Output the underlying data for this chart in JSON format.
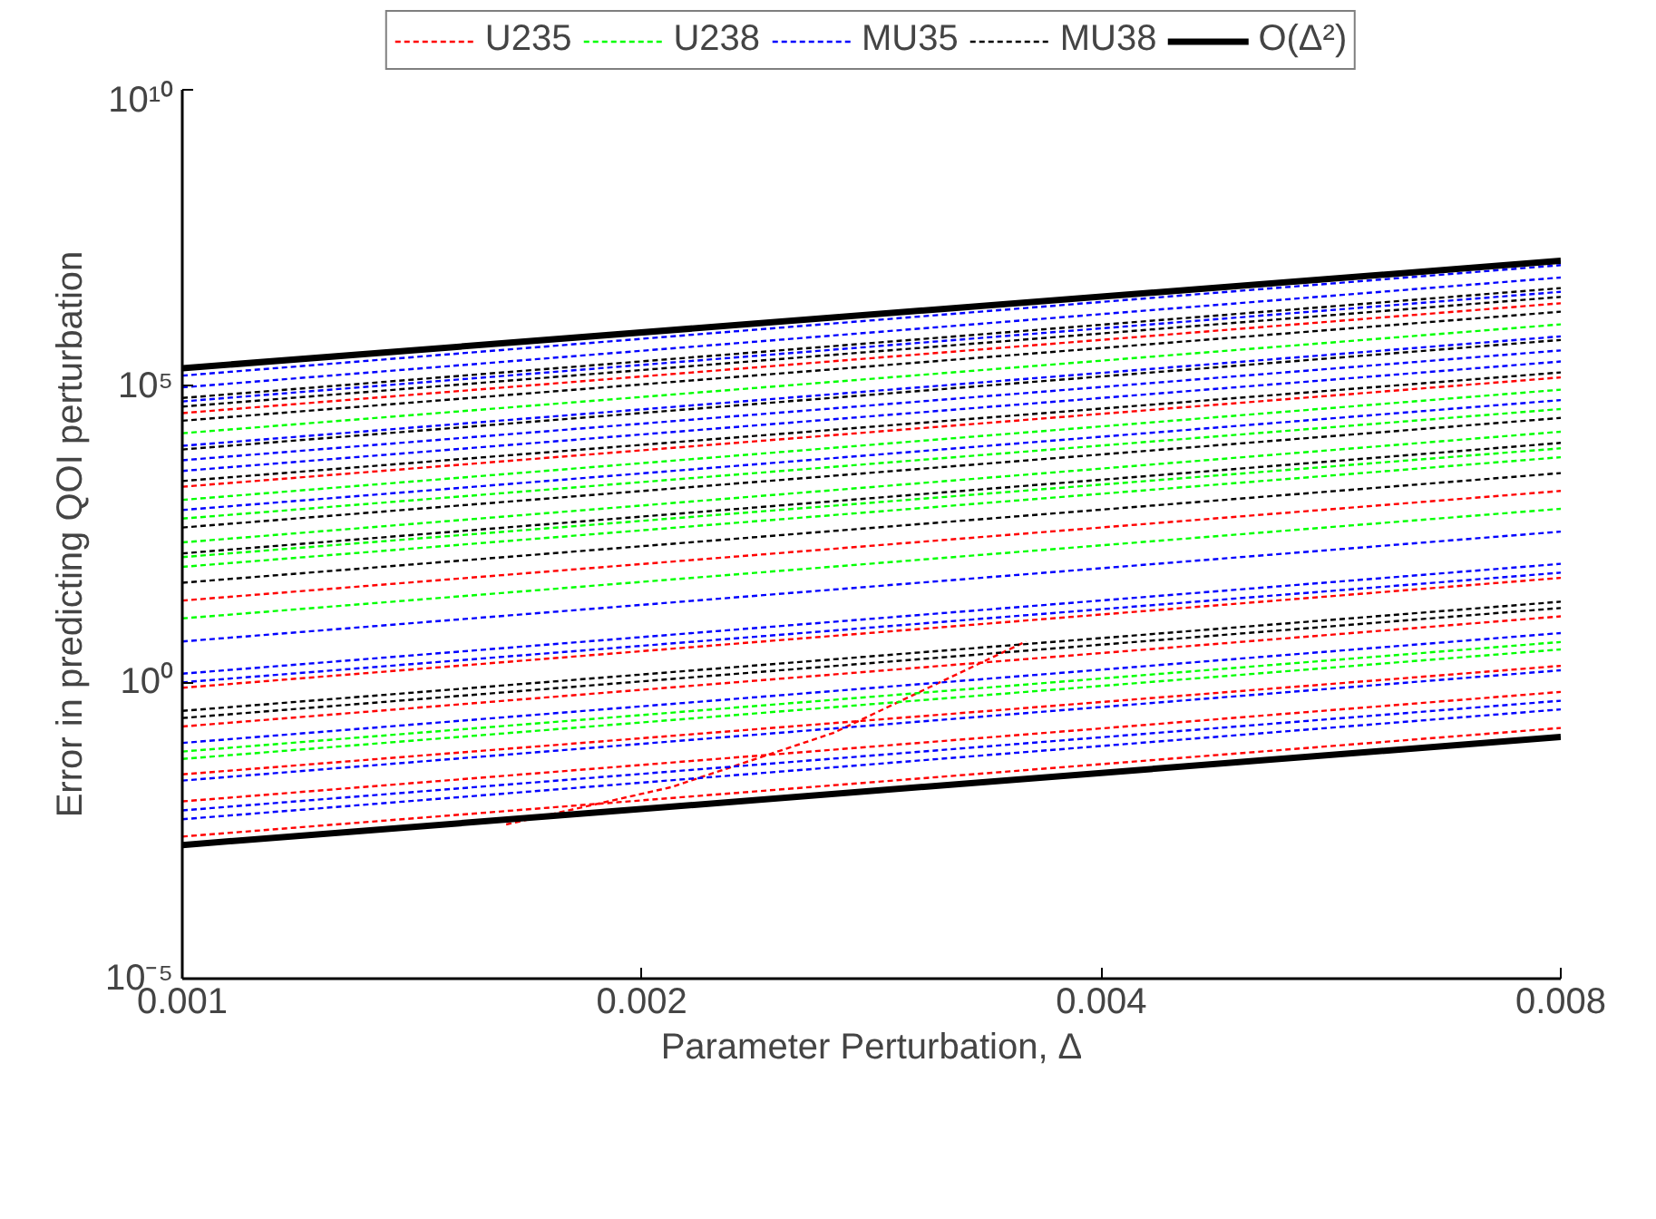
{
  "chart_data": {
    "type": "line",
    "xlabel": "Parameter Perturbation, Δ",
    "ylabel": "Error in predicting QOI perturbation",
    "log": "xy",
    "grid": false,
    "legend": "top",
    "xlim": [
      0.001,
      0.008
    ],
    "ylim": [
      1e-05,
      10000000000.0
    ],
    "xticks": [
      0.001,
      0.002,
      0.004,
      0.008
    ],
    "yticks": [
      {
        "value": 1e-05,
        "label": "10⁻⁵"
      },
      {
        "value": 1,
        "label": "10⁰"
      },
      {
        "value": 100000.0,
        "label": "10⁵"
      },
      {
        "value": 10000000000.0,
        "label": "10¹⁰"
      }
    ],
    "x": [
      0.001,
      0.008
    ],
    "series": [
      {
        "name": "U235",
        "color": "#ff0000",
        "line_style": "dashed",
        "values": [
          35000.0,
          2500000.0
        ]
      },
      {
        "color": "#ff0000",
        "line_style": "dashed",
        "values": [
          2000.0,
          140000.0
        ]
      },
      {
        "color": "#ff0000",
        "line_style": "dashed",
        "values": [
          24,
          1700.0
        ]
      },
      {
        "color": "#ff0000",
        "line_style": "dashed",
        "values": [
          0.81,
          58
        ]
      },
      {
        "color": "#ff0000",
        "line_style": "dashed",
        "values": [
          0.18,
          13
        ]
      },
      {
        "color": "#ff0000",
        "line_style": "dashed",
        "values": [
          0.028,
          1.9
        ]
      },
      {
        "color": "#ff0000",
        "line_style": "dashed",
        "values": [
          0.0098,
          0.69
        ]
      },
      {
        "color": "#ff0000",
        "line_style": "dashed",
        "values": [
          0.0025,
          0.17
        ]
      },
      {
        "color": "#ff0000",
        "line_style": "dashed",
        "x": [
          0.00163,
          0.00209,
          0.00267,
          0.00357
        ],
        "values": [
          0.004,
          0.017,
          0.14,
          4.9
        ]
      },
      {
        "name": "U238",
        "color": "#00ff00",
        "line_style": "dashed",
        "values": [
          16000.0,
          1100000.0
        ]
      },
      {
        "color": "#00ff00",
        "line_style": "dashed",
        "values": [
          1200.0,
          87000.0
        ]
      },
      {
        "color": "#00ff00",
        "line_style": "dashed",
        "values": [
          580,
          41000.0
        ]
      },
      {
        "color": "#00ff00",
        "line_style": "dashed",
        "values": [
          230,
          17000.0
        ]
      },
      {
        "color": "#00ff00",
        "line_style": "dashed",
        "values": [
          130,
          8900.0
        ]
      },
      {
        "color": "#00ff00",
        "line_style": "dashed",
        "values": [
          89,
          6300.0
        ]
      },
      {
        "color": "#00ff00",
        "line_style": "dashed",
        "values": [
          12,
          850
        ]
      },
      {
        "color": "#00ff00",
        "line_style": "dashed",
        "values": [
          0.068,
          4.8
        ]
      },
      {
        "color": "#00ff00",
        "line_style": "dashed",
        "values": [
          0.051,
          3.6
        ]
      },
      {
        "name": "MU35",
        "color": "#0000ff",
        "line_style": "dashed",
        "values": [
          150000.0,
          11000000.0
        ]
      },
      {
        "color": "#0000ff",
        "line_style": "dashed",
        "values": [
          95000.0,
          6800000.0
        ]
      },
      {
        "color": "#0000ff",
        "line_style": "dashed",
        "values": [
          55000.0,
          3900000.0
        ]
      },
      {
        "color": "#0000ff",
        "line_style": "dashed",
        "values": [
          9800.0,
          690000.0
        ]
      },
      {
        "color": "#0000ff",
        "line_style": "dashed",
        "values": [
          5600.0,
          400000.0
        ]
      },
      {
        "color": "#0000ff",
        "line_style": "dashed",
        "values": [
          3700.0,
          260000.0
        ]
      },
      {
        "color": "#0000ff",
        "line_style": "dashed",
        "values": [
          810,
          58000.0
        ]
      },
      {
        "color": "#0000ff",
        "line_style": "dashed",
        "values": [
          4.9,
          350
        ]
      },
      {
        "color": "#0000ff",
        "line_style": "dashed",
        "values": [
          1.4,
          100
        ]
      },
      {
        "color": "#0000ff",
        "line_style": "dashed",
        "values": [
          1.0,
          71
        ]
      },
      {
        "color": "#0000ff",
        "line_style": "dashed",
        "values": [
          0.095,
          6.8
        ]
      },
      {
        "color": "#0000ff",
        "line_style": "dashed",
        "values": [
          0.022,
          1.6
        ]
      },
      {
        "color": "#0000ff",
        "line_style": "dashed",
        "values": [
          0.0069,
          0.49
        ]
      },
      {
        "color": "#0000ff",
        "line_style": "dashed",
        "values": [
          0.0049,
          0.35
        ]
      },
      {
        "name": "MU38",
        "color": "#000000",
        "line_style": "dashed",
        "values": [
          63000.0,
          4500000.0
        ]
      },
      {
        "color": "#000000",
        "line_style": "dashed",
        "values": [
          45000.0,
          3200000.0
        ]
      },
      {
        "color": "#000000",
        "line_style": "dashed",
        "values": [
          26000.0,
          1800000.0
        ]
      },
      {
        "color": "#000000",
        "line_style": "dashed",
        "values": [
          8500.0,
          600000.0
        ]
      },
      {
        "color": "#000000",
        "line_style": "dashed",
        "values": [
          2500.0,
          170000.0
        ]
      },
      {
        "color": "#000000",
        "line_style": "dashed",
        "values": [
          410,
          29000.0
        ]
      },
      {
        "color": "#000000",
        "line_style": "dashed",
        "values": [
          150,
          11000.0
        ]
      },
      {
        "color": "#000000",
        "line_style": "dashed",
        "values": [
          48,
          3400.0
        ]
      },
      {
        "color": "#000000",
        "line_style": "dashed",
        "values": [
          0.33,
          23
        ]
      },
      {
        "color": "#000000",
        "line_style": "dashed",
        "values": [
          0.25,
          18
        ]
      },
      {
        "name": "O(Δ²)",
        "color": "#000000",
        "line_style": "solid",
        "values": [
          200000.0,
          13000000.0
        ]
      },
      {
        "color": "#000000",
        "line_style": "solid",
        "values": [
          0.0018,
          0.12
        ]
      }
    ]
  }
}
